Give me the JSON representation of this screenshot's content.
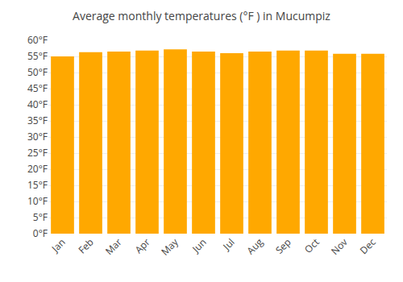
{
  "chart_data": {
    "type": "bar",
    "title": "Average monthly temperatures (°F ) in Mucumpiz",
    "categories": [
      "Jan",
      "Feb",
      "Mar",
      "Apr",
      "May",
      "Jun",
      "Jul",
      "Aug",
      "Sep",
      "Oct",
      "Nov",
      "Dec"
    ],
    "values": [
      55.0,
      56.3,
      56.5,
      56.8,
      57.2,
      56.5,
      56.0,
      56.5,
      56.8,
      56.8,
      55.8,
      55.8
    ],
    "color": "#FFA800",
    "ylim": [
      0,
      60
    ],
    "yticks": [
      {
        "value": 0,
        "label": "0°F"
      },
      {
        "value": 5,
        "label": "5°F"
      },
      {
        "value": 10,
        "label": "10°F"
      },
      {
        "value": 15,
        "label": "15°F"
      },
      {
        "value": 20,
        "label": "20°F"
      },
      {
        "value": 25,
        "label": "25°F"
      },
      {
        "value": 30,
        "label": "30°F"
      },
      {
        "value": 35,
        "label": "35°F"
      },
      {
        "value": 40,
        "label": "40°F"
      },
      {
        "value": 45,
        "label": "45°F"
      },
      {
        "value": 50,
        "label": "50°F"
      },
      {
        "value": 55,
        "label": "55°F"
      },
      {
        "value": 60,
        "label": "60°F"
      }
    ],
    "grid": true
  }
}
